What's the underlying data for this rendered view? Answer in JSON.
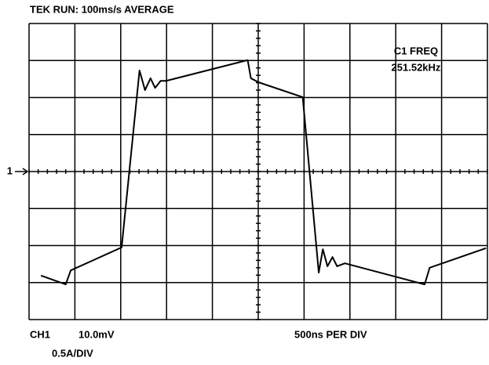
{
  "chart_data": {
    "type": "line",
    "title": "TEK RUN: 100ms/s AVERAGE",
    "annotations": {
      "measure_label": "C1 FREQ",
      "measure_value": "251.52kHz",
      "channel_marker": "1",
      "channel": "CH1",
      "volts_per_div": "10.0mV",
      "amps_per_div": "0.5A/DIV",
      "time_per_div": "500ns PER DIV"
    },
    "x": [
      0.26,
      0.8,
      0.91,
      2.02,
      2.41,
      2.53,
      2.65,
      2.75,
      2.87,
      2.99,
      4.77,
      4.84,
      5.01,
      5.97,
      6.32,
      6.41,
      6.51,
      6.62,
      6.72,
      6.89,
      8.63,
      8.74,
      9.97
    ],
    "values": [
      -2.81,
      -3.05,
      -2.67,
      -2.05,
      2.73,
      2.2,
      2.52,
      2.26,
      2.45,
      2.45,
      3.01,
      2.52,
      2.41,
      2.01,
      -2.73,
      -2.1,
      -2.56,
      -2.31,
      -2.56,
      -2.48,
      -3.05,
      -2.6,
      -2.07
    ],
    "color": "#000000",
    "xlim": [
      0,
      10
    ],
    "ylim": [
      -4,
      4
    ],
    "grid": true
  }
}
